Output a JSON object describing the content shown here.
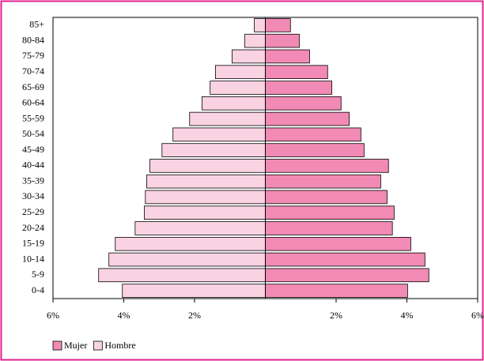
{
  "chart_data": {
    "type": "pyramid",
    "categories": [
      "85+",
      "80-84",
      "75-79",
      "70-74",
      "65-69",
      "60-64",
      "55-59",
      "50-54",
      "45-49",
      "40-44",
      "35-39",
      "30-34",
      "25-29",
      "20-24",
      "15-19",
      "10-14",
      "5-9",
      "0-4"
    ],
    "series": [
      {
        "name": "Mujer",
        "color": "#f18ab4",
        "values": [
          0.71,
          0.96,
          1.25,
          1.76,
          1.88,
          2.14,
          2.37,
          2.7,
          2.79,
          3.48,
          3.26,
          3.44,
          3.64,
          3.59,
          4.11,
          4.51,
          4.62,
          4.02
        ]
      },
      {
        "name": "Hombre",
        "color": "#fad3e3",
        "values": [
          -0.31,
          -0.58,
          -0.94,
          -1.41,
          -1.56,
          -1.79,
          -2.14,
          -2.61,
          -2.92,
          -3.26,
          -3.35,
          -3.39,
          -3.42,
          -3.68,
          -4.24,
          -4.42,
          -4.71,
          -4.04
        ]
      }
    ],
    "xlim": [
      -6,
      6
    ],
    "xticks": [
      {
        "value": -6,
        "label": "6%"
      },
      {
        "value": -4,
        "label": "4%"
      },
      {
        "value": -2,
        "label": "2%"
      },
      {
        "value": 2,
        "label": "2%"
      },
      {
        "value": 4,
        "label": "4%"
      },
      {
        "value": 6,
        "label": "6%"
      }
    ],
    "legend": "bottom-left"
  }
}
